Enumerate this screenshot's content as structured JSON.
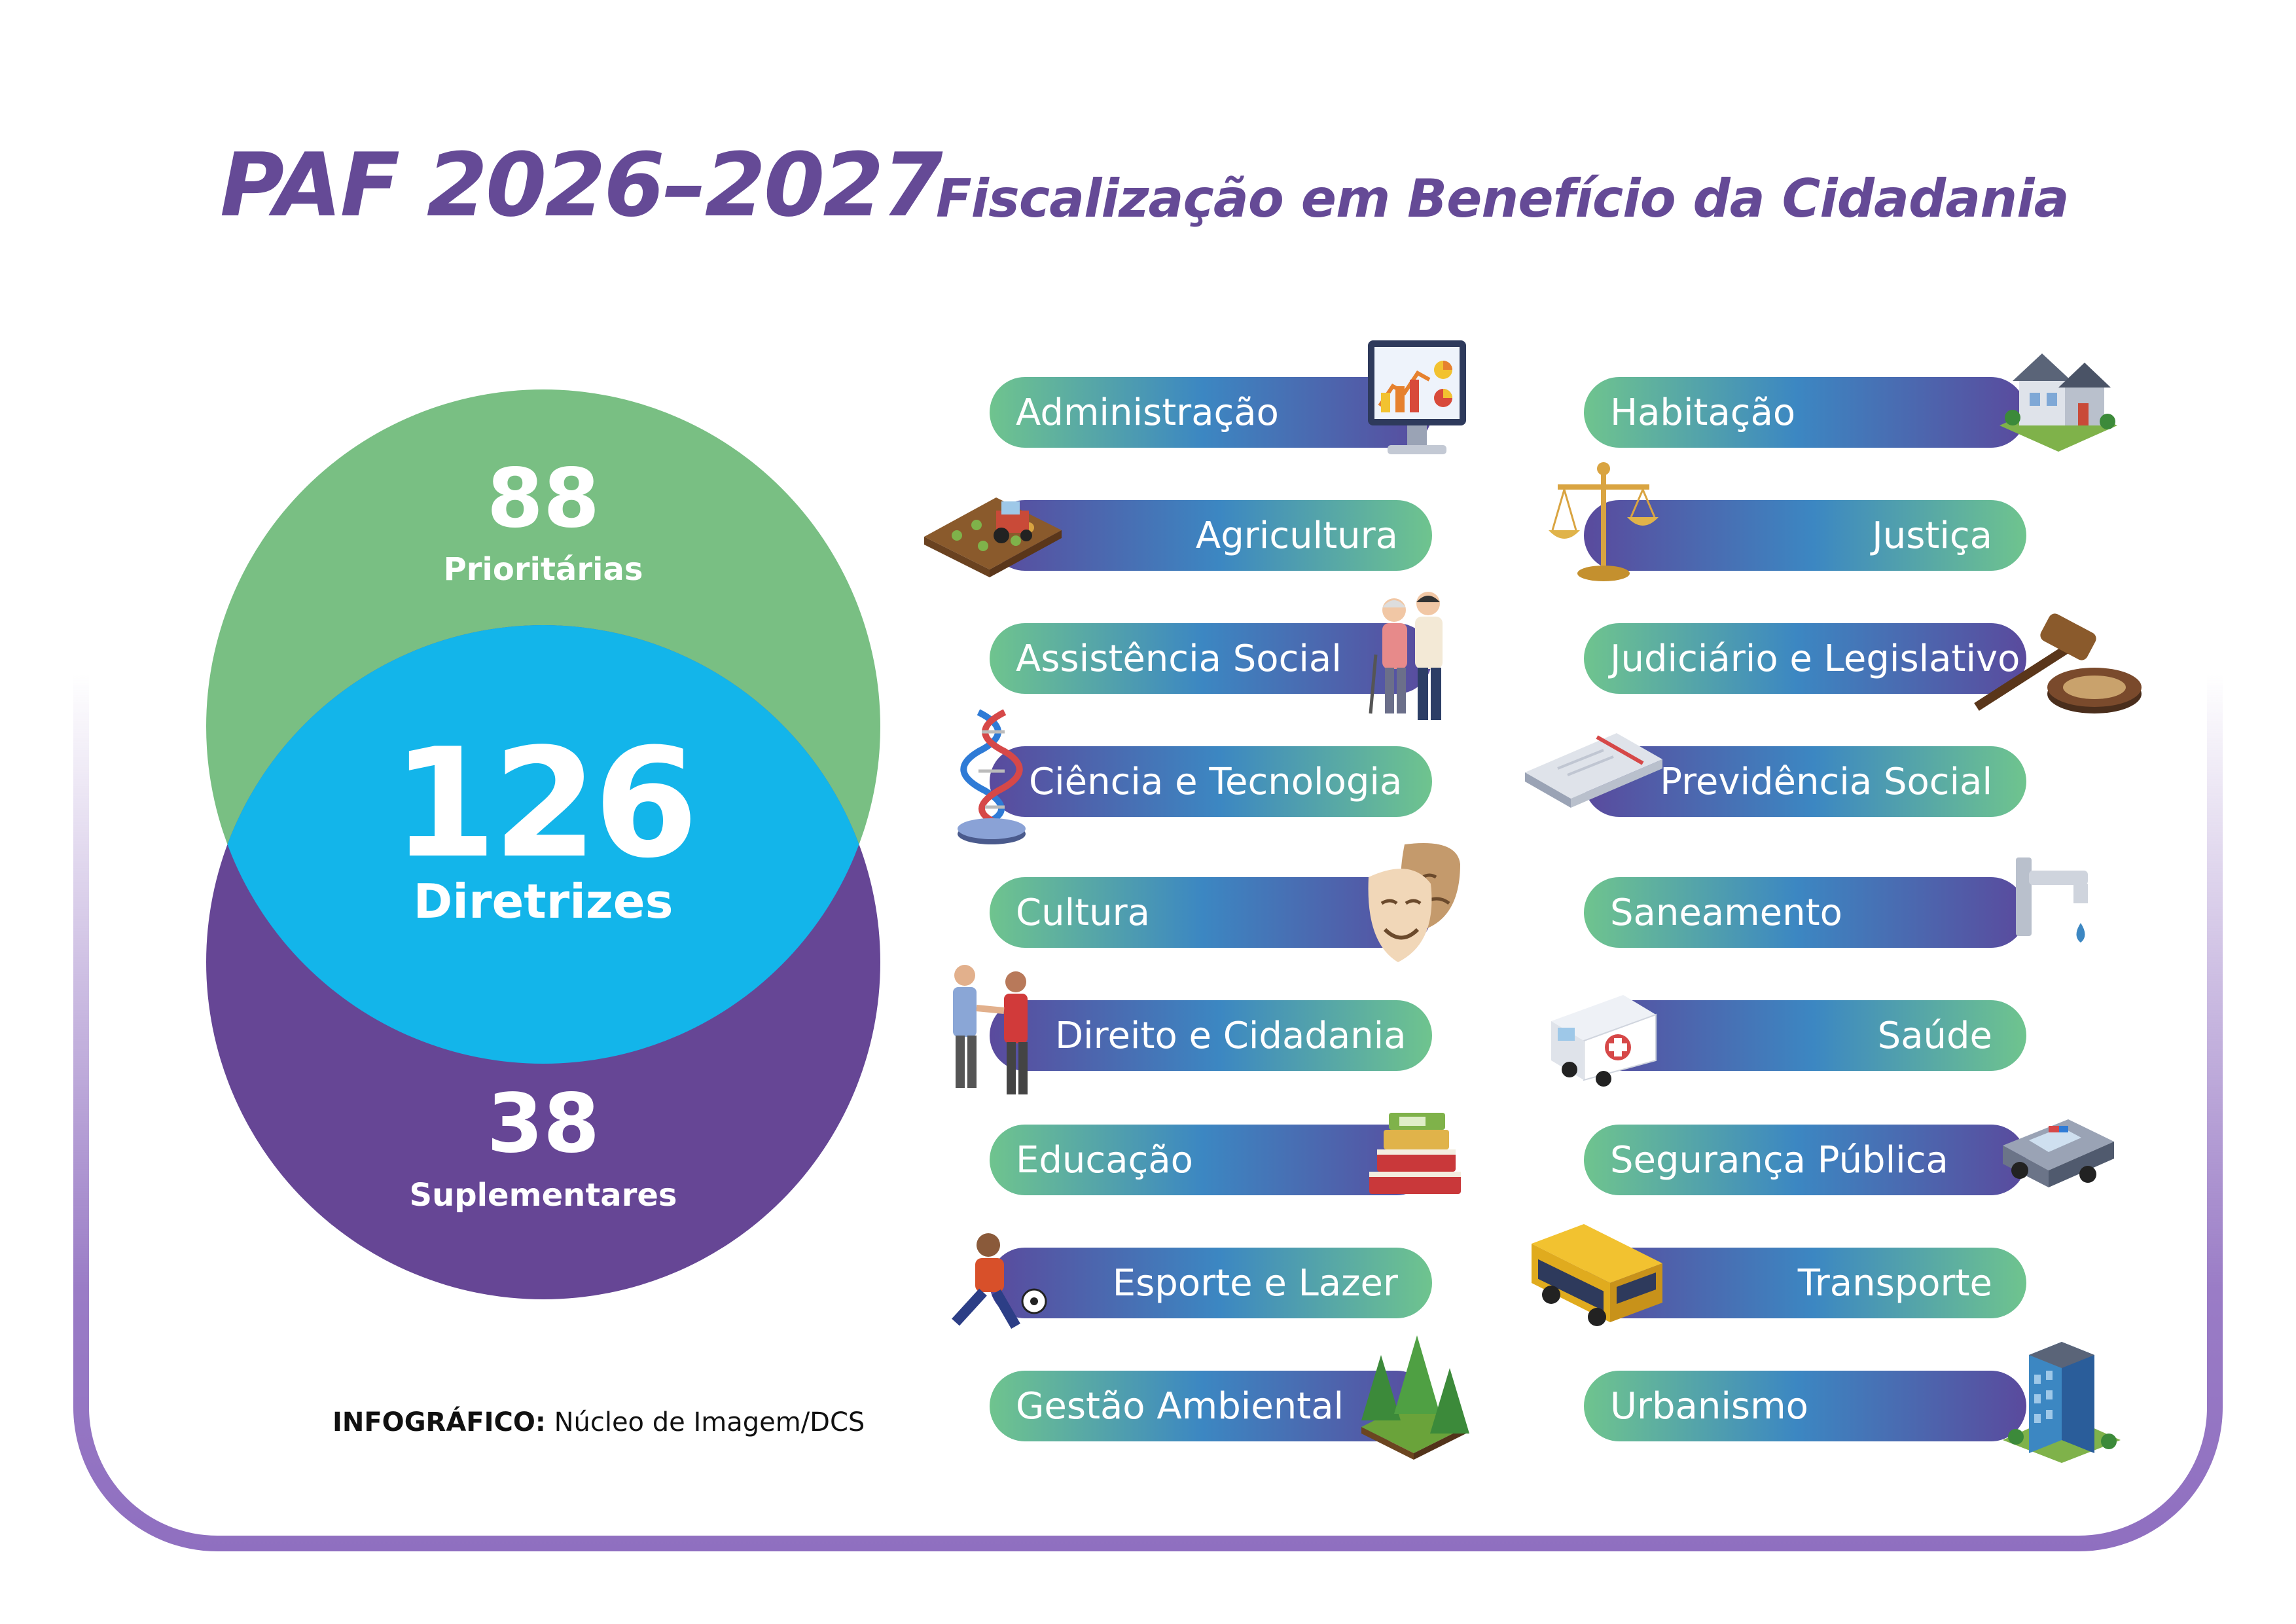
{
  "title": {
    "main": "PAF 2026–2027",
    "subtitle": "Fiscalização em Benefício da Cidadania"
  },
  "venn": {
    "top": {
      "value": "88",
      "label": "Prioritárias"
    },
    "center": {
      "value": "126",
      "label": "Diretrizes"
    },
    "bottom": {
      "value": "38",
      "label": "Suplementares"
    }
  },
  "colors": {
    "green": "#79bf83",
    "purple": "#664695",
    "cyan": "#13b5ea",
    "title": "#654a96"
  },
  "credit": {
    "label": "INFOGRÁFICO:",
    "text": "Núcleo de Imagem/DCS"
  },
  "themes_left": [
    {
      "label": "Administração",
      "icon": "monitor-chart-icon"
    },
    {
      "label": "Agricultura",
      "icon": "tractor-field-icon"
    },
    {
      "label": "Assistência Social",
      "icon": "elderly-couple-icon"
    },
    {
      "label": "Ciência e Tecnologia",
      "icon": "dna-helix-icon"
    },
    {
      "label": "Cultura",
      "icon": "theater-masks-icon"
    },
    {
      "label": "Direito e Cidadania",
      "icon": "handshake-people-icon"
    },
    {
      "label": "Educação",
      "icon": "book-stack-icon"
    },
    {
      "label": "Esporte e Lazer",
      "icon": "soccer-player-icon"
    },
    {
      "label": "Gestão Ambiental",
      "icon": "forest-icon"
    }
  ],
  "themes_right": [
    {
      "label": "Habitação",
      "icon": "house-icon"
    },
    {
      "label": "Justiça",
      "icon": "scales-icon"
    },
    {
      "label": "Judiciário e Legislativo",
      "icon": "gavel-icon"
    },
    {
      "label": "Previdência Social",
      "icon": "document-icon"
    },
    {
      "label": "Saneamento",
      "icon": "faucet-icon"
    },
    {
      "label": "Saúde",
      "icon": "ambulance-icon"
    },
    {
      "label": "Segurança Pública",
      "icon": "police-car-icon"
    },
    {
      "label": "Transporte",
      "icon": "bus-icon"
    },
    {
      "label": "Urbanismo",
      "icon": "building-icon"
    }
  ]
}
